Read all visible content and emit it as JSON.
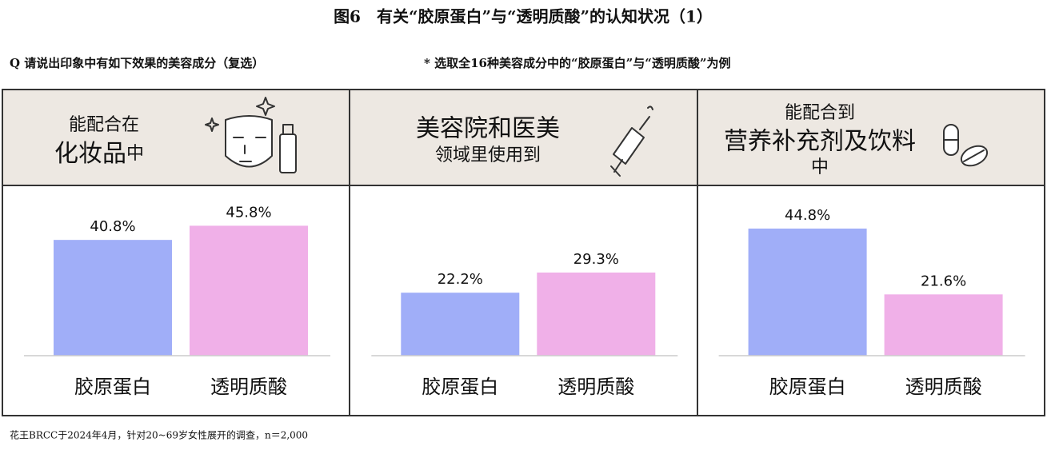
{
  "title": "图6　有关“胶原蛋白”与“透明质酸”的认知状况（1）",
  "question": "Q 请说出印象中有如下效果的美容成分（复选）",
  "note": "* 选取全16种美容成分中的“胶原蛋白”与“透明质酸”为例",
  "source": "花王BRCC于2024年4月，针对20~69岁女性展开的调查，n＝2,000",
  "chart_data": [
    {
      "type": "bar",
      "title_lines": [
        "能配合在",
        "化妆品",
        "中"
      ],
      "categories": [
        "胶原蛋白",
        "透明质酸"
      ],
      "values": [
        40.8,
        45.8
      ],
      "value_labels": [
        "40.8%",
        "45.8%"
      ],
      "colors": [
        "#a0aef8",
        "#f0b0e8"
      ],
      "ylim": [
        0,
        50
      ]
    },
    {
      "type": "bar",
      "title_lines": [
        "美容院和医美",
        "领域里使用到"
      ],
      "categories": [
        "胶原蛋白",
        "透明质酸"
      ],
      "values": [
        22.2,
        29.3
      ],
      "value_labels": [
        "22.2%",
        "29.3%"
      ],
      "colors": [
        "#a0aef8",
        "#f0b0e8"
      ],
      "ylim": [
        0,
        50
      ]
    },
    {
      "type": "bar",
      "title_lines": [
        "能配合到",
        "营养补充剂及饮料",
        "中"
      ],
      "categories": [
        "胶原蛋白",
        "透明质酸"
      ],
      "values": [
        44.8,
        21.6
      ],
      "value_labels": [
        "44.8%",
        "21.6%"
      ],
      "colors": [
        "#a0aef8",
        "#f0b0e8"
      ],
      "ylim": [
        0,
        50
      ]
    }
  ]
}
